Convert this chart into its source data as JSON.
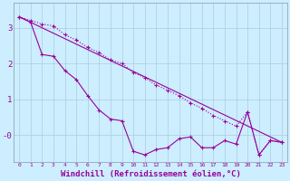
{
  "xlabel": "Windchill (Refroidissement éolien,°C)",
  "bg_color": "#cceeff",
  "line_color": "#990099",
  "grid_color": "#aaccdd",
  "line1_x": [
    0,
    1,
    2,
    3,
    4,
    5,
    6,
    7,
    8,
    9,
    10,
    11,
    12,
    13,
    14,
    15,
    16,
    17,
    18,
    19,
    20,
    21,
    22,
    23
  ],
  "line1_y": [
    3.3,
    3.15,
    2.25,
    2.2,
    1.8,
    1.55,
    1.1,
    0.7,
    0.45,
    0.4,
    -0.45,
    -0.55,
    -0.4,
    -0.35,
    -0.1,
    -0.05,
    -0.35,
    -0.35,
    -0.15,
    -0.25,
    0.65,
    -0.55,
    -0.15,
    -0.2
  ],
  "line2_x": [
    0,
    1,
    2,
    3,
    4,
    5,
    6,
    7,
    8,
    9,
    10,
    11,
    12,
    13,
    14,
    15,
    16,
    17,
    18,
    19,
    20,
    21,
    22,
    23
  ],
  "line2_y": [
    3.3,
    3.2,
    3.1,
    3.05,
    2.8,
    2.65,
    2.45,
    2.3,
    2.1,
    2.0,
    1.75,
    1.6,
    1.4,
    1.25,
    1.1,
    0.9,
    0.75,
    0.55,
    0.4,
    0.25,
    0.65,
    -0.55,
    -0.15,
    -0.2
  ],
  "line3_x": [
    0,
    23
  ],
  "line3_y": [
    3.3,
    -0.2
  ],
  "ylim": [
    -0.75,
    3.7
  ],
  "xlim": [
    -0.5,
    23.5
  ],
  "ytick_vals": [
    3,
    2,
    1,
    0
  ],
  "ytick_labels": [
    "3",
    "2",
    "1",
    "-0"
  ],
  "xticks": [
    0,
    1,
    2,
    3,
    4,
    5,
    6,
    7,
    8,
    9,
    10,
    11,
    12,
    13,
    14,
    15,
    16,
    17,
    18,
    19,
    20,
    21,
    22,
    23
  ]
}
